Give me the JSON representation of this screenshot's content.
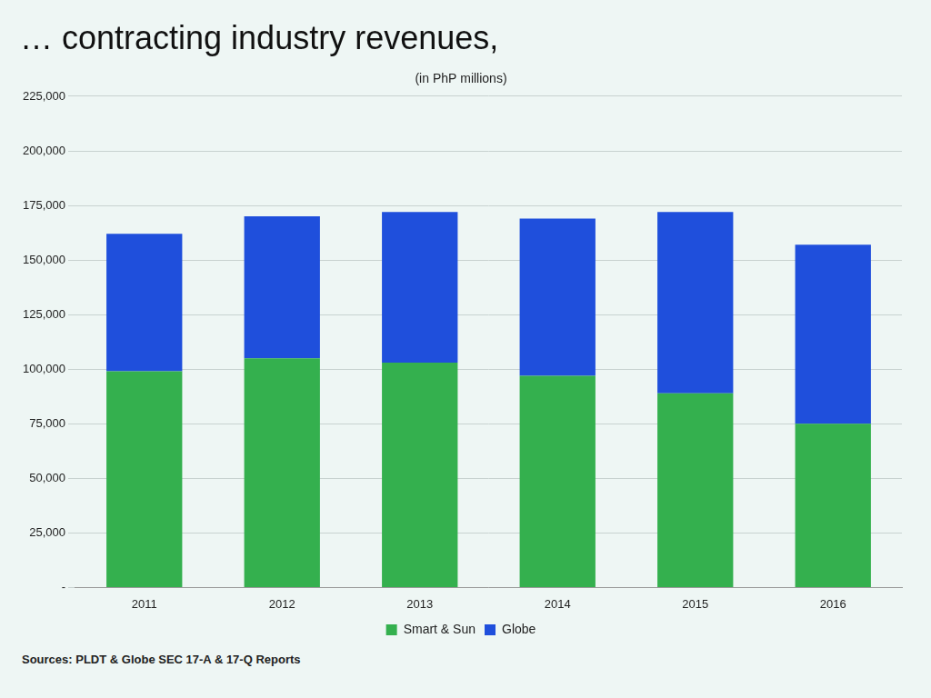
{
  "chart_data": {
    "type": "bar",
    "title": "… contracting industry revenues,",
    "subtitle": "(in PhP millions)",
    "source": "Sources: PLDT & Globe SEC 17-A & 17-Q Reports",
    "categories": [
      "2011",
      "2012",
      "2013",
      "2014",
      "2015",
      "2016"
    ],
    "series": [
      {
        "name": "Smart & Sun",
        "color": "#34b04e",
        "values": [
          99000,
          105000,
          103000,
          97000,
          89000,
          75000
        ]
      },
      {
        "name": "Globe",
        "color": "#1f4fdc",
        "values": [
          63000,
          65000,
          69000,
          72000,
          83000,
          82000
        ]
      }
    ],
    "stacked": true,
    "ylim": [
      0,
      225000
    ],
    "yticks": [
      {
        "value": 0,
        "label": "-"
      },
      {
        "value": 25000,
        "label": "25,000"
      },
      {
        "value": 50000,
        "label": "50,000"
      },
      {
        "value": 75000,
        "label": "75,000"
      },
      {
        "value": 100000,
        "label": "100,000"
      },
      {
        "value": 125000,
        "label": "125,000"
      },
      {
        "value": 150000,
        "label": "150,000"
      },
      {
        "value": 175000,
        "label": "175,000"
      },
      {
        "value": 200000,
        "label": "200,000"
      },
      {
        "value": 225000,
        "label": "225,000"
      }
    ],
    "grid": true,
    "legend": "bottom"
  }
}
